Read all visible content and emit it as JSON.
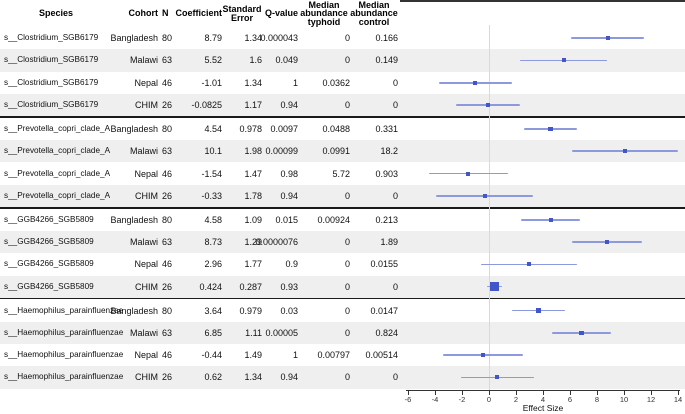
{
  "table": {
    "header": {
      "species": "Species",
      "cohort": "Cohort",
      "n": "N",
      "coefficient": "Coefficient",
      "standard_error": [
        "Standard",
        "Error"
      ],
      "q_value": "Q-value",
      "median_typhoid": [
        "Median",
        "abundance",
        "typhoid"
      ],
      "median_control": [
        "Median",
        "abundance",
        "control"
      ]
    },
    "sections": [
      {
        "rows": [
          {
            "species": "s__Clostridium_SGB6179",
            "cohort": "Bangladesh",
            "n": "80",
            "coefficient": "8.79",
            "se": "1.34",
            "q": "0.000043",
            "typhoid": "0",
            "control": "0.166"
          },
          {
            "species": "s__Clostridium_SGB6179",
            "cohort": "Malawi",
            "n": "63",
            "coefficient": "5.52",
            "se": "1.6",
            "q": "0.049",
            "typhoid": "0",
            "control": "0.149"
          },
          {
            "species": "s__Clostridium_SGB6179",
            "cohort": "Nepal",
            "n": "46",
            "coefficient": "-1.01",
            "se": "1.34",
            "q": "1",
            "typhoid": "0.0362",
            "control": "0"
          },
          {
            "species": "s__Clostridium_SGB6179",
            "cohort": "CHIM",
            "n": "26",
            "coefficient": "-0.0825",
            "se": "1.17",
            "q": "0.94",
            "typhoid": "0",
            "control": "0"
          }
        ]
      },
      {
        "rows": [
          {
            "species": "s__Prevotella_copri_clade_A",
            "cohort": "Bangladesh",
            "n": "80",
            "coefficient": "4.54",
            "se": "0.978",
            "q": "0.0097",
            "typhoid": "0.0488",
            "control": "0.331"
          },
          {
            "species": "s__Prevotella_copri_clade_A",
            "cohort": "Malawi",
            "n": "63",
            "coefficient": "10.1",
            "se": "1.98",
            "q": "0.00099",
            "typhoid": "0.0991",
            "control": "18.2"
          },
          {
            "species": "s__Prevotella_copri_clade_A",
            "cohort": "Nepal",
            "n": "46",
            "coefficient": "-1.54",
            "se": "1.47",
            "q": "0.98",
            "typhoid": "5.72",
            "control": "0.903"
          },
          {
            "species": "s__Prevotella_copri_clade_A",
            "cohort": "CHIM",
            "n": "26",
            "coefficient": "-0.33",
            "se": "1.78",
            "q": "0.94",
            "typhoid": "0",
            "control": "0"
          }
        ]
      },
      {
        "rows": [
          {
            "species": "s__GGB4266_SGB5809",
            "cohort": "Bangladesh",
            "n": "80",
            "coefficient": "4.58",
            "se": "1.09",
            "q": "0.015",
            "typhoid": "0.00924",
            "control": "0.213"
          },
          {
            "species": "s__GGB4266_SGB5809",
            "cohort": "Malawi",
            "n": "63",
            "coefficient": "8.73",
            "se": "1.29",
            "q": "0.0000076",
            "typhoid": "0",
            "control": "1.89"
          },
          {
            "species": "s__GGB4266_SGB5809",
            "cohort": "Nepal",
            "n": "46",
            "coefficient": "2.96",
            "se": "1.77",
            "q": "0.9",
            "typhoid": "0",
            "control": "0.0155"
          },
          {
            "species": "s__GGB4266_SGB5809",
            "cohort": "CHIM",
            "n": "26",
            "coefficient": "0.424",
            "se": "0.287",
            "q": "0.93",
            "typhoid": "0",
            "control": "0"
          }
        ]
      },
      {
        "rows": [
          {
            "species": "s__Haemophilus_parainfluenzae",
            "cohort": "Bangladesh",
            "n": "80",
            "coefficient": "3.64",
            "se": "0.979",
            "q": "0.03",
            "typhoid": "0",
            "control": "0.0147"
          },
          {
            "species": "s__Haemophilus_parainfluenzae",
            "cohort": "Malawi",
            "n": "63",
            "coefficient": "6.85",
            "se": "1.11",
            "q": "0.00005",
            "typhoid": "0",
            "control": "0.824"
          },
          {
            "species": "s__Haemophilus_parainfluenzae",
            "cohort": "Nepal",
            "n": "46",
            "coefficient": "-0.44",
            "se": "1.49",
            "q": "1",
            "typhoid": "0.00797",
            "control": "0.00514"
          },
          {
            "species": "s__Haemophilus_parainfluenzae",
            "cohort": "CHIM",
            "n": "26",
            "coefficient": "0.62",
            "se": "1.34",
            "q": "0.94",
            "typhoid": "0",
            "control": "0"
          }
        ]
      }
    ]
  },
  "plot": {
    "colors": {
      "ci_bar": "#8e99dd",
      "point": "#4356c8",
      "zero_line": "#d9d9d9",
      "stripe": "#efefef",
      "separator": "#1a1a1a",
      "axis": "#333333"
    }
  },
  "chart_data": {
    "type": "scatter",
    "subtype": "forest-plot",
    "xlabel": "Effect Size",
    "xlim": [
      -6,
      14
    ],
    "xticks": [
      -6,
      -4,
      -2,
      0,
      2,
      4,
      6,
      8,
      10,
      12,
      14
    ],
    "reference_line_x": 0,
    "grid": false,
    "legend": "none",
    "series": [
      {
        "name": "s__Clostridium_SGB6179",
        "points": [
          {
            "cohort": "Bangladesh",
            "effect": 8.79,
            "se": 1.34,
            "ci": [
              6.11,
              11.47
            ]
          },
          {
            "cohort": "Malawi",
            "effect": 5.52,
            "se": 1.6,
            "ci": [
              2.32,
              8.72
            ]
          },
          {
            "cohort": "Nepal",
            "effect": -1.01,
            "se": 1.34,
            "ci": [
              -3.69,
              1.67
            ]
          },
          {
            "cohort": "CHIM",
            "effect": -0.0825,
            "se": 1.17,
            "ci": [
              -2.42,
              2.26
            ]
          }
        ]
      },
      {
        "name": "s__Prevotella_copri_clade_A",
        "points": [
          {
            "cohort": "Bangladesh",
            "effect": 4.54,
            "se": 0.978,
            "ci": [
              2.58,
              6.5
            ]
          },
          {
            "cohort": "Malawi",
            "effect": 10.1,
            "se": 1.98,
            "ci": [
              6.14,
              14.06
            ]
          },
          {
            "cohort": "Nepal",
            "effect": -1.54,
            "se": 1.47,
            "ci": [
              -4.48,
              1.4
            ]
          },
          {
            "cohort": "CHIM",
            "effect": -0.33,
            "se": 1.78,
            "ci": [
              -3.89,
              3.23
            ]
          }
        ]
      },
      {
        "name": "s__GGB4266_SGB5809",
        "points": [
          {
            "cohort": "Bangladesh",
            "effect": 4.58,
            "se": 1.09,
            "ci": [
              2.4,
              6.76
            ]
          },
          {
            "cohort": "Malawi",
            "effect": 8.73,
            "se": 1.29,
            "ci": [
              6.15,
              11.31
            ]
          },
          {
            "cohort": "Nepal",
            "effect": 2.96,
            "se": 1.77,
            "ci": [
              -0.58,
              6.5
            ]
          },
          {
            "cohort": "CHIM",
            "effect": 0.424,
            "se": 0.287,
            "ci": [
              -0.15,
              1.0
            ]
          }
        ]
      },
      {
        "name": "s__Haemophilus_parainfluenzae",
        "points": [
          {
            "cohort": "Bangladesh",
            "effect": 3.64,
            "se": 0.979,
            "ci": [
              1.68,
              5.6
            ]
          },
          {
            "cohort": "Malawi",
            "effect": 6.85,
            "se": 1.11,
            "ci": [
              4.63,
              9.07
            ]
          },
          {
            "cohort": "Nepal",
            "effect": -0.44,
            "se": 1.49,
            "ci": [
              -3.42,
              2.54
            ]
          },
          {
            "cohort": "CHIM",
            "effect": 0.62,
            "se": 1.34,
            "ci": [
              -2.06,
              3.3
            ]
          }
        ]
      }
    ]
  }
}
